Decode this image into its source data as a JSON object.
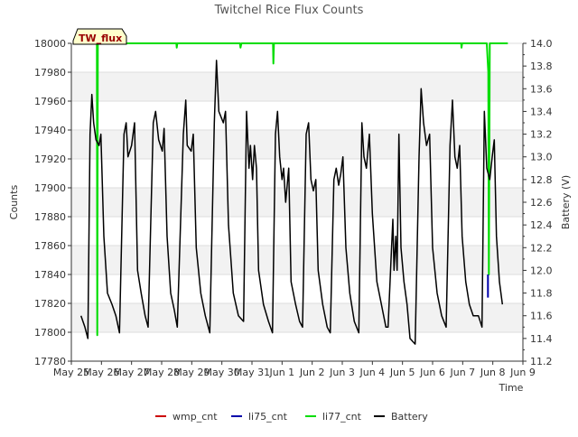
{
  "chart_data": {
    "type": "line",
    "title": "Twitchel Rice Flux Counts",
    "xlabel": "Time",
    "ylabel": "Counts",
    "y2label": "Battery (V)",
    "annotation": "TW_flux",
    "ylim": [
      17780,
      18000
    ],
    "y2lim": [
      11.2,
      14.0
    ],
    "xlim": [
      0,
      15
    ],
    "yticks": [
      17780,
      17800,
      17820,
      17840,
      17860,
      17880,
      17900,
      17920,
      17940,
      17960,
      17980,
      18000
    ],
    "y2ticks": [
      "11.2",
      "11.4",
      "11.6",
      "11.8",
      "12.0",
      "12.2",
      "12.4",
      "12.6",
      "12.8",
      "13.0",
      "13.2",
      "13.4",
      "13.6",
      "13.8",
      "14.0"
    ],
    "xtick_labels": [
      "May 25",
      "May 26",
      "May 27",
      "May 28",
      "May 29",
      "May 30",
      "May 31",
      "Jun 1",
      "Jun 2",
      "Jun 3",
      "Jun 4",
      "Jun 5",
      "Jun 6",
      "Jun 7",
      "Jun 8",
      "Jun 9"
    ],
    "grid": true,
    "legend_position": "bottom",
    "series": [
      {
        "name": "wmp_cnt",
        "color": "#cc0000",
        "axis": "left",
        "points": []
      },
      {
        "name": "li75_cnt",
        "color": "#0000aa",
        "axis": "left",
        "points": [
          [
            13.84,
            17824
          ],
          [
            13.84,
            17840
          ]
        ]
      },
      {
        "name": "li77_cnt",
        "color": "#00dd00",
        "axis": "left",
        "points": [
          [
            0.3,
            18000
          ],
          [
            0.85,
            18000
          ],
          [
            0.86,
            17798
          ],
          [
            0.88,
            18000
          ],
          [
            3.49,
            18000
          ],
          [
            3.5,
            17997
          ],
          [
            3.52,
            18000
          ],
          [
            5.6,
            18000
          ],
          [
            5.62,
            17997
          ],
          [
            5.65,
            18000
          ],
          [
            6.7,
            18000
          ],
          [
            6.71,
            17986
          ],
          [
            6.73,
            18000
          ],
          [
            12.95,
            18000
          ],
          [
            12.96,
            17997
          ],
          [
            12.98,
            18000
          ],
          [
            13.8,
            18000
          ],
          [
            13.85,
            17980
          ],
          [
            13.87,
            17840
          ],
          [
            13.9,
            18000
          ],
          [
            14.5,
            18000
          ]
        ]
      },
      {
        "name": "Battery",
        "color": "#000000",
        "axis": "right",
        "points": [
          [
            0.32,
            11.6
          ],
          [
            0.45,
            11.5
          ],
          [
            0.55,
            11.4
          ],
          [
            0.62,
            13.2
          ],
          [
            0.68,
            13.55
          ],
          [
            0.74,
            13.3
          ],
          [
            0.82,
            13.15
          ],
          [
            0.92,
            13.1
          ],
          [
            0.98,
            13.2
          ],
          [
            1.08,
            12.3
          ],
          [
            1.2,
            11.8
          ],
          [
            1.35,
            11.7
          ],
          [
            1.48,
            11.6
          ],
          [
            1.6,
            11.45
          ],
          [
            1.75,
            13.2
          ],
          [
            1.82,
            13.3
          ],
          [
            1.88,
            13.0
          ],
          [
            2.0,
            13.1
          ],
          [
            2.1,
            13.3
          ],
          [
            2.2,
            12.0
          ],
          [
            2.32,
            11.8
          ],
          [
            2.45,
            11.6
          ],
          [
            2.55,
            11.5
          ],
          [
            2.72,
            13.3
          ],
          [
            2.8,
            13.4
          ],
          [
            2.9,
            13.15
          ],
          [
            3.02,
            13.05
          ],
          [
            3.08,
            13.25
          ],
          [
            3.18,
            12.3
          ],
          [
            3.3,
            11.8
          ],
          [
            3.42,
            11.65
          ],
          [
            3.52,
            11.5
          ],
          [
            3.72,
            13.2
          ],
          [
            3.8,
            13.5
          ],
          [
            3.85,
            13.1
          ],
          [
            3.98,
            13.05
          ],
          [
            4.05,
            13.2
          ],
          [
            4.15,
            12.2
          ],
          [
            4.3,
            11.8
          ],
          [
            4.45,
            11.6
          ],
          [
            4.6,
            11.45
          ],
          [
            4.75,
            13.3
          ],
          [
            4.82,
            13.85
          ],
          [
            4.9,
            13.4
          ],
          [
            5.05,
            13.3
          ],
          [
            5.12,
            13.4
          ],
          [
            5.22,
            12.4
          ],
          [
            5.38,
            11.8
          ],
          [
            5.55,
            11.6
          ],
          [
            5.72,
            11.55
          ],
          [
            5.82,
            13.4
          ],
          [
            5.9,
            12.9
          ],
          [
            5.95,
            13.1
          ],
          [
            6.02,
            12.8
          ],
          [
            6.08,
            13.1
          ],
          [
            6.15,
            12.9
          ],
          [
            6.22,
            12.0
          ],
          [
            6.38,
            11.7
          ],
          [
            6.55,
            11.55
          ],
          [
            6.68,
            11.45
          ],
          [
            6.78,
            13.2
          ],
          [
            6.85,
            13.4
          ],
          [
            6.92,
            13.0
          ],
          [
            7.0,
            12.8
          ],
          [
            7.05,
            12.9
          ],
          [
            7.12,
            12.6
          ],
          [
            7.22,
            12.9
          ],
          [
            7.3,
            11.9
          ],
          [
            7.45,
            11.7
          ],
          [
            7.58,
            11.55
          ],
          [
            7.68,
            11.5
          ],
          [
            7.8,
            13.2
          ],
          [
            7.88,
            13.3
          ],
          [
            7.96,
            12.8
          ],
          [
            8.04,
            12.7
          ],
          [
            8.12,
            12.8
          ],
          [
            8.2,
            12.0
          ],
          [
            8.35,
            11.7
          ],
          [
            8.5,
            11.5
          ],
          [
            8.6,
            11.45
          ],
          [
            8.72,
            12.8
          ],
          [
            8.8,
            12.9
          ],
          [
            8.88,
            12.75
          ],
          [
            8.95,
            12.85
          ],
          [
            9.02,
            13.0
          ],
          [
            9.12,
            12.2
          ],
          [
            9.25,
            11.8
          ],
          [
            9.4,
            11.55
          ],
          [
            9.55,
            11.45
          ],
          [
            9.65,
            13.3
          ],
          [
            9.72,
            13.0
          ],
          [
            9.8,
            12.9
          ],
          [
            9.9,
            13.2
          ],
          [
            10.0,
            12.5
          ],
          [
            10.15,
            11.9
          ],
          [
            10.3,
            11.7
          ],
          [
            10.45,
            11.5
          ],
          [
            10.52,
            11.5
          ],
          [
            10.62,
            12.1
          ],
          [
            10.68,
            12.45
          ],
          [
            10.72,
            12.0
          ],
          [
            10.78,
            12.3
          ],
          [
            10.82,
            12.0
          ],
          [
            10.88,
            13.2
          ],
          [
            10.95,
            12.2
          ],
          [
            11.05,
            11.9
          ],
          [
            11.15,
            11.7
          ],
          [
            11.25,
            11.4
          ],
          [
            11.42,
            11.35
          ],
          [
            11.55,
            13.0
          ],
          [
            11.62,
            13.6
          ],
          [
            11.7,
            13.3
          ],
          [
            11.8,
            13.1
          ],
          [
            11.9,
            13.2
          ],
          [
            12.0,
            12.2
          ],
          [
            12.15,
            11.8
          ],
          [
            12.3,
            11.6
          ],
          [
            12.45,
            11.5
          ],
          [
            12.58,
            13.1
          ],
          [
            12.66,
            13.5
          ],
          [
            12.74,
            13.0
          ],
          [
            12.82,
            12.9
          ],
          [
            12.9,
            13.1
          ],
          [
            12.98,
            12.3
          ],
          [
            13.1,
            11.9
          ],
          [
            13.22,
            11.7
          ],
          [
            13.35,
            11.6
          ],
          [
            13.52,
            11.6
          ],
          [
            13.64,
            11.5
          ],
          [
            13.72,
            13.4
          ],
          [
            13.8,
            12.9
          ],
          [
            13.9,
            12.8
          ],
          [
            13.98,
            13.0
          ],
          [
            14.05,
            13.15
          ],
          [
            14.12,
            12.3
          ],
          [
            14.22,
            11.9
          ],
          [
            14.32,
            11.7
          ]
        ]
      }
    ]
  }
}
